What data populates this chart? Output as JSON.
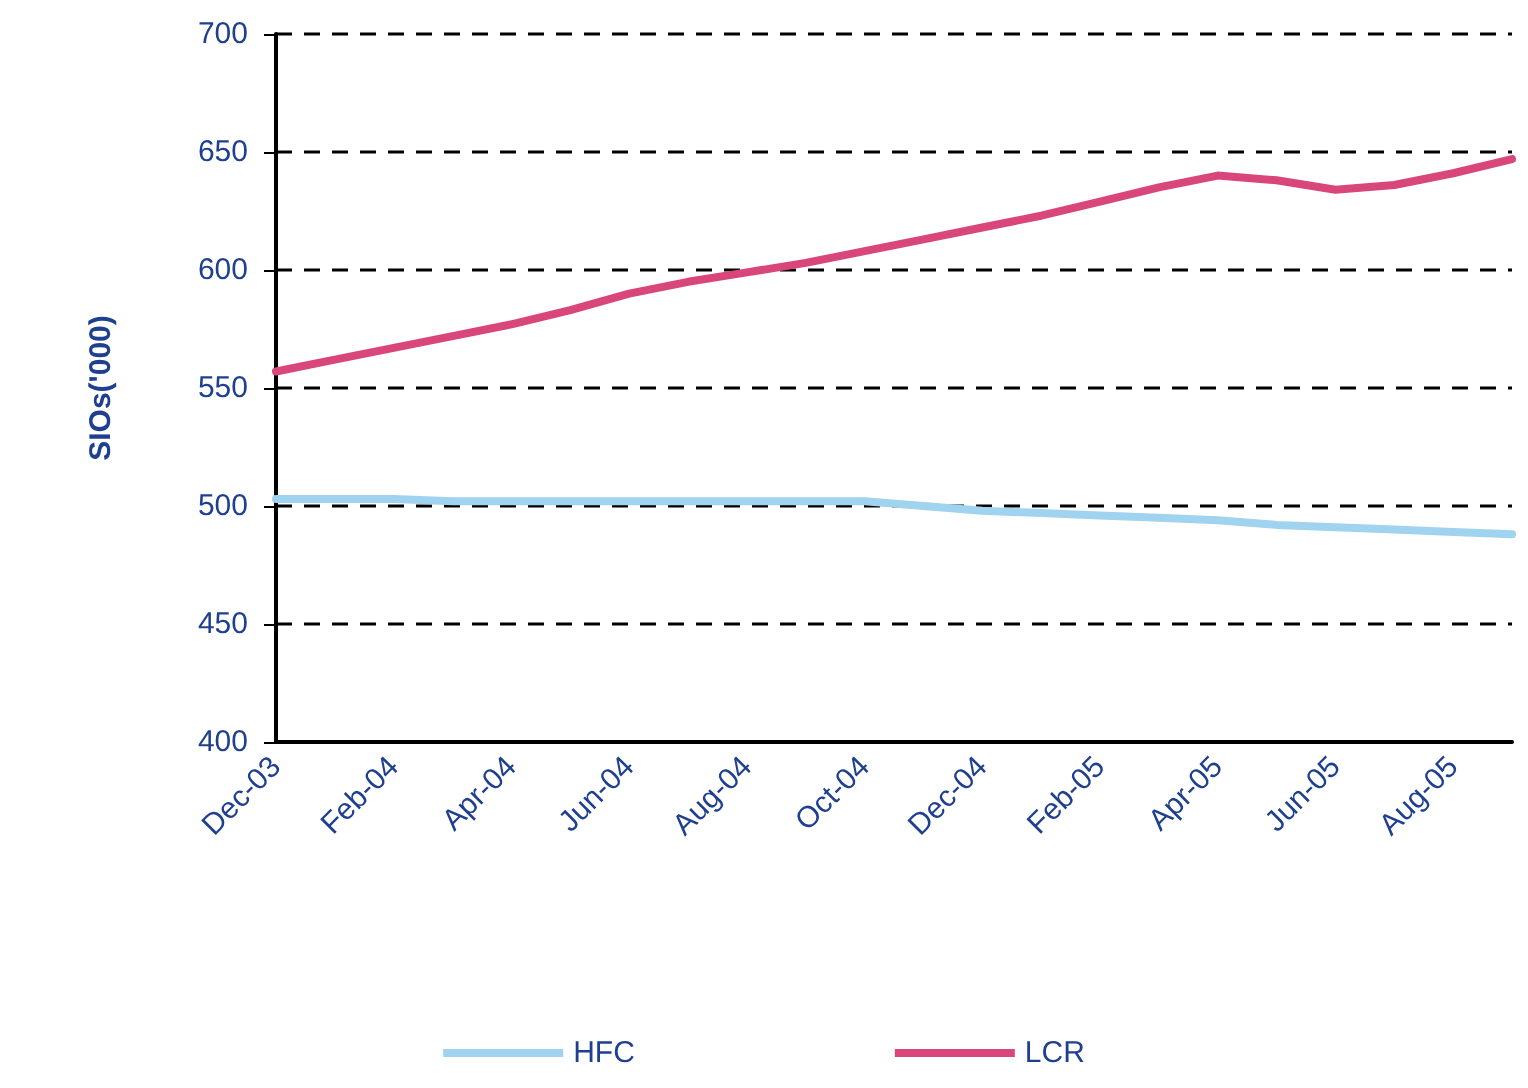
{
  "chart_data": {
    "type": "line",
    "ylabel": "SIOs('000)",
    "categories": [
      "Dec-03",
      null,
      "Feb-04",
      null,
      "Apr-04",
      null,
      "Jun-04",
      null,
      "Aug-04",
      null,
      "Oct-04",
      null,
      "Dec-04",
      null,
      "Feb-05",
      null,
      "Apr-05",
      null,
      "Jun-05",
      null,
      "Aug-05",
      null
    ],
    "series": [
      {
        "name": "HFC",
        "color": "#9fd3f0",
        "values": [
          503,
          503,
          503,
          502,
          502,
          502,
          502,
          502,
          502,
          502,
          502,
          500,
          498,
          497,
          496,
          495,
          494,
          492,
          491,
          490,
          489,
          488
        ]
      },
      {
        "name": "LCR",
        "color": "#d9467a",
        "values": [
          557,
          562,
          567,
          572,
          577,
          583,
          590,
          595,
          599,
          603,
          608,
          613,
          618,
          623,
          629,
          635,
          640,
          638,
          634,
          636,
          641,
          647
        ]
      }
    ],
    "ylim": [
      400,
      700
    ],
    "yticks": [
      400,
      450,
      500,
      550,
      600,
      650,
      700
    ],
    "grid": "y",
    "legend": "bottom",
    "line_style": "solid",
    "marker": "none"
  }
}
